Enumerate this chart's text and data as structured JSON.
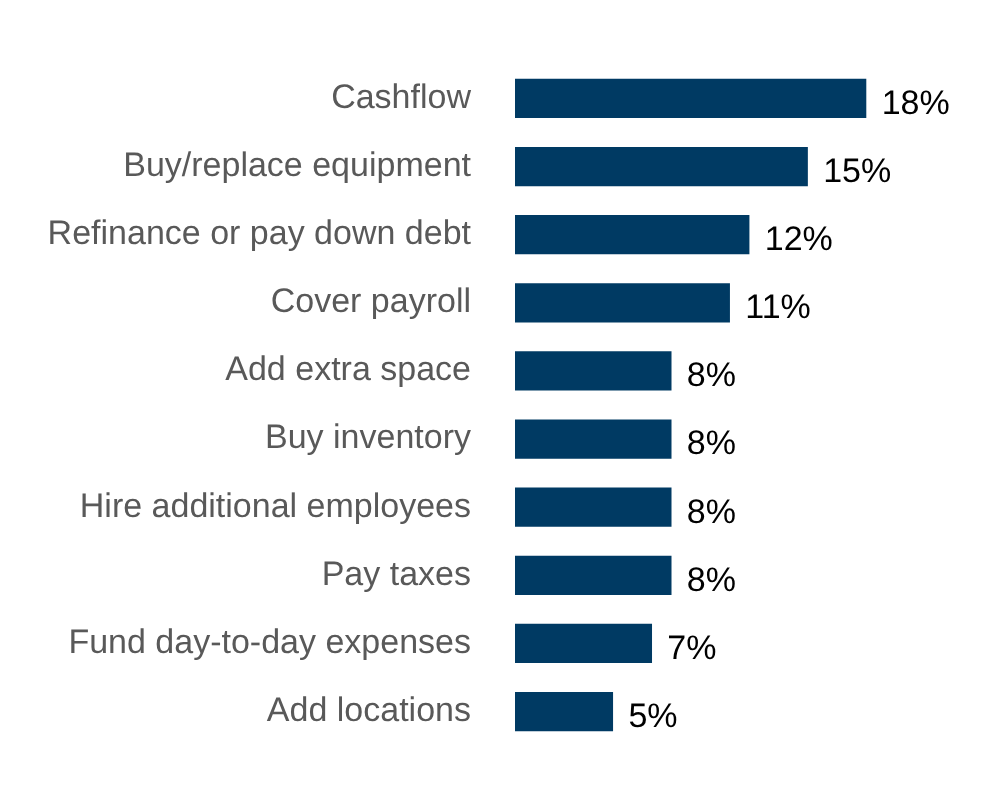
{
  "chart_data": {
    "type": "bar",
    "orientation": "horizontal",
    "categories": [
      "Cashflow",
      "Buy/replace equipment",
      "Refinance or pay down debt",
      "Cover payroll",
      "Add extra space",
      "Buy inventory",
      "Hire additional employees",
      "Pay taxes",
      "Fund day-to-day expenses",
      "Add locations"
    ],
    "values": [
      18,
      15,
      12,
      11,
      8,
      8,
      8,
      8,
      7,
      5
    ],
    "value_labels": [
      "18%",
      "15%",
      "12%",
      "11%",
      "8%",
      "8%",
      "8%",
      "8%",
      "7%",
      "5%"
    ],
    "color": "#003a63",
    "tick_labels": "y",
    "grid": false,
    "legend": false
  }
}
